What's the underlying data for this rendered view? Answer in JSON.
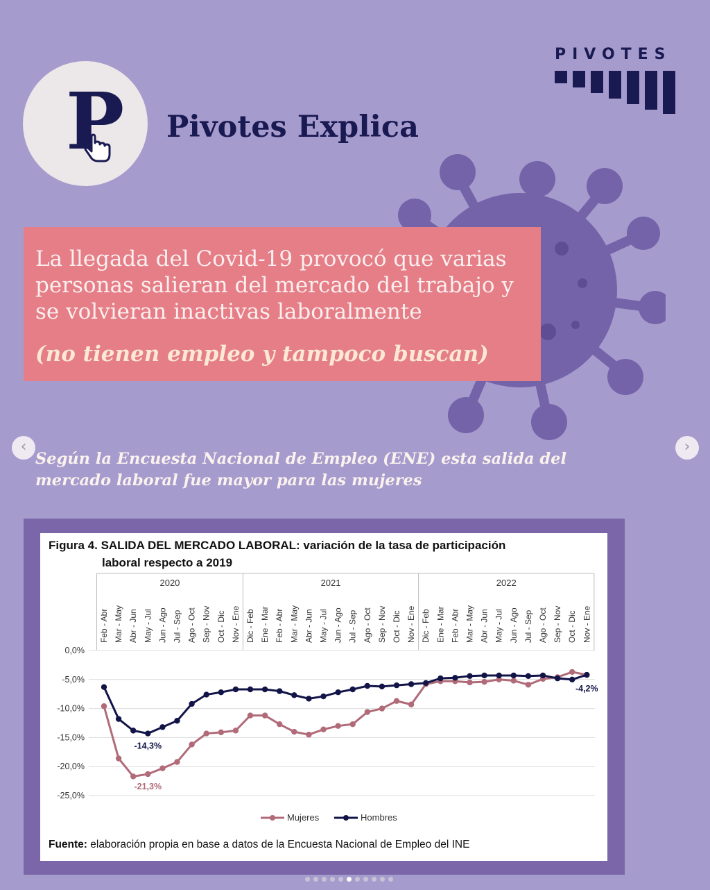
{
  "header": {
    "logo_letter": "P",
    "title": "Pivotes Explica",
    "brand": "PIVOTES"
  },
  "banner": {
    "text": "La llegada del Covid-19 provocó que varias personas salieran del mercado del trabajo y se volvieran inactivas laboralmente",
    "subtext": "(no tienen empleo y tampoco buscan)"
  },
  "ene_text": "Según la Encuesta Nacional de Empleo (ENE) esta salida del mercado laboral fue mayor para las mujeres",
  "nav": {
    "prev": "‹",
    "next": "›"
  },
  "colors": {
    "background": "#a69bcd",
    "pink": "#e57e86",
    "navy": "#1a1a52",
    "mujeres": "#b06a78",
    "hombres": "#121448"
  },
  "carousel": {
    "count": 11,
    "active_index": 5
  },
  "chart_data": {
    "type": "line",
    "title_bold": "Figura 4. SALIDA DEL MERCADO LABORAL:",
    "title_rest": " variación de la tasa de participación",
    "title_line2": "laboral respecto a 2019",
    "years": [
      "2020",
      "2021",
      "2022"
    ],
    "categories": [
      "Feb - Abr",
      "Mar - May",
      "Abr - Jun",
      "May - Jul",
      "Jun - Ago",
      "Jul - Sep",
      "Ago - Oct",
      "Sep - Nov",
      "Oct - Dic",
      "Nov - Ene",
      "Dic - Feb",
      "Ene - Mar",
      "Feb - Abr",
      "Mar - May",
      "Abr - Jun",
      "May - Jul",
      "Jun - Ago",
      "Jul - Sep",
      "Ago - Oct",
      "Sep - Nov",
      "Oct - Dic",
      "Nov - Ene",
      "Dic - Feb",
      "Ene - Mar",
      "Feb - Abr",
      "Mar - May",
      "Abr - Jun",
      "May - Jul",
      "Jun - Ago",
      "Jul - Sep",
      "Ago - Oct",
      "Sep - Nov",
      "Oct - Dic",
      "Nov - Ene"
    ],
    "yticks": [
      "0,0%",
      "-5,0%",
      "-10,0%",
      "-15,0%",
      "-20,0%",
      "-25,0%"
    ],
    "ylim": [
      -25,
      0
    ],
    "series": [
      {
        "name": "Mujeres",
        "values": [
          -9.6,
          -18.6,
          -21.7,
          -21.3,
          -20.3,
          -19.2,
          -16.2,
          -14.3,
          -14.1,
          -13.8,
          -11.2,
          -11.2,
          -12.7,
          -14.0,
          -14.5,
          -13.6,
          -13.0,
          -12.7,
          -10.6,
          -10.0,
          -8.7,
          -9.3,
          -5.8,
          -5.3,
          -5.3,
          -5.5,
          -5.4,
          -5.0,
          -5.2,
          -5.9,
          -4.9,
          -4.6,
          -3.7,
          -4.2
        ]
      },
      {
        "name": "Hombres",
        "values": [
          -6.3,
          -11.8,
          -13.8,
          -14.3,
          -13.2,
          -12.1,
          -9.2,
          -7.6,
          -7.2,
          -6.7,
          -6.7,
          -6.7,
          -7.0,
          -7.7,
          -8.3,
          -7.9,
          -7.2,
          -6.7,
          -6.1,
          -6.2,
          -6.0,
          -5.8,
          -5.6,
          -4.8,
          -4.7,
          -4.4,
          -4.3,
          -4.3,
          -4.3,
          -4.4,
          -4.3,
          -4.8,
          -5.0,
          -4.2
        ]
      }
    ],
    "annotations": {
      "hombres_min": "-14,3%",
      "mujeres_min": "-21,3%",
      "hombres_last": "-4,2%"
    },
    "source_bold": "Fuente:",
    "source_rest": " elaboración propia en base a datos de la Encuesta Nacional de Empleo del INE"
  }
}
